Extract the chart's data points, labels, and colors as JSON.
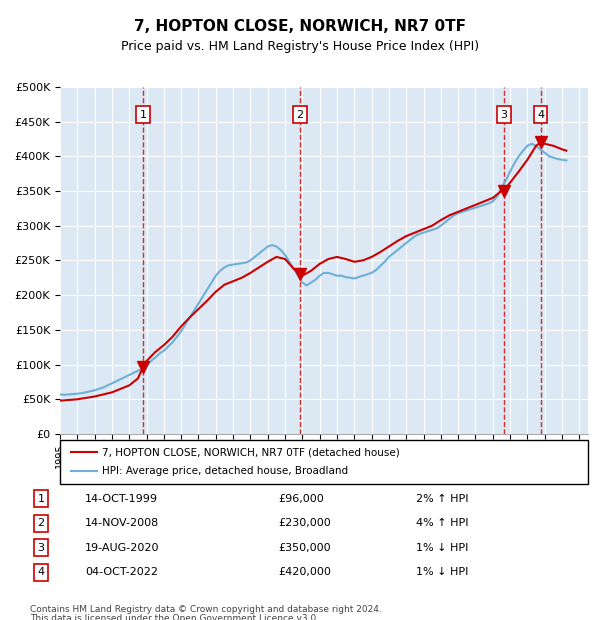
{
  "title": "7, HOPTON CLOSE, NORWICH, NR7 0TF",
  "subtitle": "Price paid vs. HM Land Registry's House Price Index (HPI)",
  "background_color": "#dce9f5",
  "plot_bg_color": "#dce9f5",
  "ylim": [
    0,
    500000
  ],
  "yticks": [
    0,
    50000,
    100000,
    150000,
    200000,
    250000,
    300000,
    350000,
    400000,
    450000,
    500000
  ],
  "ytick_labels": [
    "£0",
    "£50K",
    "£100K",
    "£150K",
    "£200K",
    "£250K",
    "£300K",
    "£350K",
    "£400K",
    "£450K",
    "£500K"
  ],
  "xlim_start": 1995.0,
  "xlim_end": 2025.5,
  "hpi_color": "#6dafd6",
  "price_color": "#cc0000",
  "sale_marker_color": "#cc0000",
  "vline_color": "#cc0000",
  "transactions": [
    {
      "num": 1,
      "date_str": "14-OCT-1999",
      "year": 1999.79,
      "price": 96000,
      "pct": "2%",
      "dir": "↑"
    },
    {
      "num": 2,
      "date_str": "14-NOV-2008",
      "year": 2008.87,
      "price": 230000,
      "pct": "4%",
      "dir": "↑"
    },
    {
      "num": 3,
      "date_str": "19-AUG-2020",
      "year": 2020.63,
      "price": 350000,
      "pct": "1%",
      "dir": "↓"
    },
    {
      "num": 4,
      "date_str": "04-OCT-2022",
      "year": 2022.76,
      "price": 420000,
      "pct": "1%",
      "dir": "↓"
    }
  ],
  "legend_line1": "7, HOPTON CLOSE, NORWICH, NR7 0TF (detached house)",
  "legend_line2": "HPI: Average price, detached house, Broadland",
  "footer1": "Contains HM Land Registry data © Crown copyright and database right 2024.",
  "footer2": "This data is licensed under the Open Government Licence v3.0.",
  "hpi_data_x": [
    1995.0,
    1995.25,
    1995.5,
    1995.75,
    1996.0,
    1996.25,
    1996.5,
    1996.75,
    1997.0,
    1997.25,
    1997.5,
    1997.75,
    1998.0,
    1998.25,
    1998.5,
    1998.75,
    1999.0,
    1999.25,
    1999.5,
    1999.75,
    2000.0,
    2000.25,
    2000.5,
    2000.75,
    2001.0,
    2001.25,
    2001.5,
    2001.75,
    2002.0,
    2002.25,
    2002.5,
    2002.75,
    2003.0,
    2003.25,
    2003.5,
    2003.75,
    2004.0,
    2004.25,
    2004.5,
    2004.75,
    2005.0,
    2005.25,
    2005.5,
    2005.75,
    2006.0,
    2006.25,
    2006.5,
    2006.75,
    2007.0,
    2007.25,
    2007.5,
    2007.75,
    2008.0,
    2008.25,
    2008.5,
    2008.75,
    2009.0,
    2009.25,
    2009.5,
    2009.75,
    2010.0,
    2010.25,
    2010.5,
    2010.75,
    2011.0,
    2011.25,
    2011.5,
    2011.75,
    2012.0,
    2012.25,
    2012.5,
    2012.75,
    2013.0,
    2013.25,
    2013.5,
    2013.75,
    2014.0,
    2014.25,
    2014.5,
    2014.75,
    2015.0,
    2015.25,
    2015.5,
    2015.75,
    2016.0,
    2016.25,
    2016.5,
    2016.75,
    2017.0,
    2017.25,
    2017.5,
    2017.75,
    2018.0,
    2018.25,
    2018.5,
    2018.75,
    2019.0,
    2019.25,
    2019.5,
    2019.75,
    2020.0,
    2020.25,
    2020.5,
    2020.75,
    2021.0,
    2021.25,
    2021.5,
    2021.75,
    2022.0,
    2022.25,
    2022.5,
    2022.75,
    2023.0,
    2023.25,
    2023.5,
    2023.75,
    2024.0,
    2024.25
  ],
  "hpi_data_y": [
    57000,
    56500,
    57000,
    57500,
    58000,
    59000,
    60000,
    61500,
    63000,
    65000,
    67000,
    70000,
    73000,
    76000,
    79000,
    82000,
    85000,
    88000,
    91000,
    94000,
    99000,
    105000,
    110000,
    116000,
    120000,
    126000,
    132000,
    140000,
    148000,
    158000,
    168000,
    178000,
    188000,
    198000,
    208000,
    218000,
    228000,
    235000,
    240000,
    243000,
    244000,
    245000,
    246000,
    247000,
    250000,
    255000,
    260000,
    265000,
    270000,
    272000,
    270000,
    265000,
    258000,
    248000,
    238000,
    228000,
    218000,
    214000,
    218000,
    222000,
    228000,
    232000,
    232000,
    230000,
    228000,
    228000,
    226000,
    225000,
    224000,
    226000,
    228000,
    230000,
    232000,
    236000,
    242000,
    248000,
    255000,
    260000,
    265000,
    270000,
    275000,
    280000,
    285000,
    288000,
    290000,
    292000,
    294000,
    296000,
    300000,
    305000,
    310000,
    315000,
    318000,
    320000,
    322000,
    324000,
    326000,
    328000,
    330000,
    332000,
    335000,
    342000,
    355000,
    365000,
    378000,
    390000,
    400000,
    408000,
    415000,
    418000,
    415000,
    410000,
    405000,
    400000,
    398000,
    396000,
    395000,
    394000
  ],
  "price_line_x": [
    1995.0,
    1995.5,
    1996.0,
    1996.5,
    1997.0,
    1997.5,
    1998.0,
    1998.5,
    1999.0,
    1999.5,
    1999.79,
    2000.0,
    2000.5,
    2001.0,
    2001.5,
    2002.0,
    2002.5,
    2003.0,
    2003.5,
    2004.0,
    2004.5,
    2005.0,
    2005.5,
    2006.0,
    2006.5,
    2007.0,
    2007.5,
    2008.0,
    2008.5,
    2008.87,
    2009.0,
    2009.5,
    2010.0,
    2010.5,
    2011.0,
    2011.5,
    2012.0,
    2012.5,
    2013.0,
    2013.5,
    2014.0,
    2014.5,
    2015.0,
    2015.5,
    2016.0,
    2016.5,
    2017.0,
    2017.5,
    2018.0,
    2018.5,
    2019.0,
    2019.5,
    2020.0,
    2020.5,
    2020.63,
    2021.0,
    2021.5,
    2022.0,
    2022.5,
    2022.76,
    2023.0,
    2023.5,
    2024.0,
    2024.25
  ],
  "price_line_y": [
    48000,
    49000,
    50000,
    52000,
    54000,
    57000,
    60000,
    65000,
    70000,
    80000,
    96000,
    105000,
    118000,
    128000,
    140000,
    155000,
    168000,
    180000,
    192000,
    205000,
    215000,
    220000,
    225000,
    232000,
    240000,
    248000,
    255000,
    252000,
    238000,
    230000,
    228000,
    235000,
    245000,
    252000,
    255000,
    252000,
    248000,
    250000,
    255000,
    262000,
    270000,
    278000,
    285000,
    290000,
    295000,
    300000,
    308000,
    315000,
    320000,
    325000,
    330000,
    335000,
    340000,
    350000,
    350000,
    362000,
    378000,
    395000,
    415000,
    420000,
    418000,
    415000,
    410000,
    408000
  ]
}
